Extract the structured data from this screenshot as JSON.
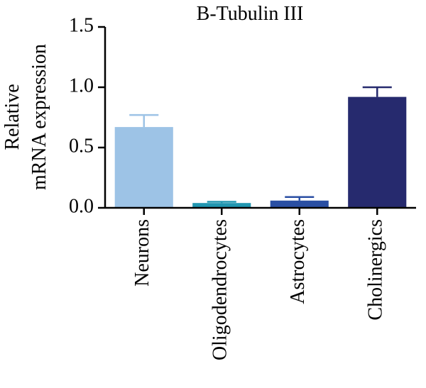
{
  "chart_data": {
    "type": "bar",
    "title": "B-Tubulin III",
    "ylabel_lines": [
      "Relative",
      "mRNA expression"
    ],
    "xlabel": "",
    "categories": [
      "Neurons",
      "Oligodendrocytes",
      "Astrocytes",
      "Cholinergics"
    ],
    "values": [
      0.67,
      0.04,
      0.06,
      0.92
    ],
    "error_upper": [
      0.1,
      0.01,
      0.03,
      0.08
    ],
    "colors": [
      "#9dc3e6",
      "#2196b0",
      "#2a4fa3",
      "#262a6e"
    ],
    "ylim": [
      0,
      1.5
    ],
    "yticks": [
      0.0,
      0.5,
      1.0,
      1.5
    ],
    "ytick_labels": [
      "0.0",
      "0.5",
      "1.0",
      "1.5"
    ],
    "grid": false,
    "legend": "none"
  }
}
